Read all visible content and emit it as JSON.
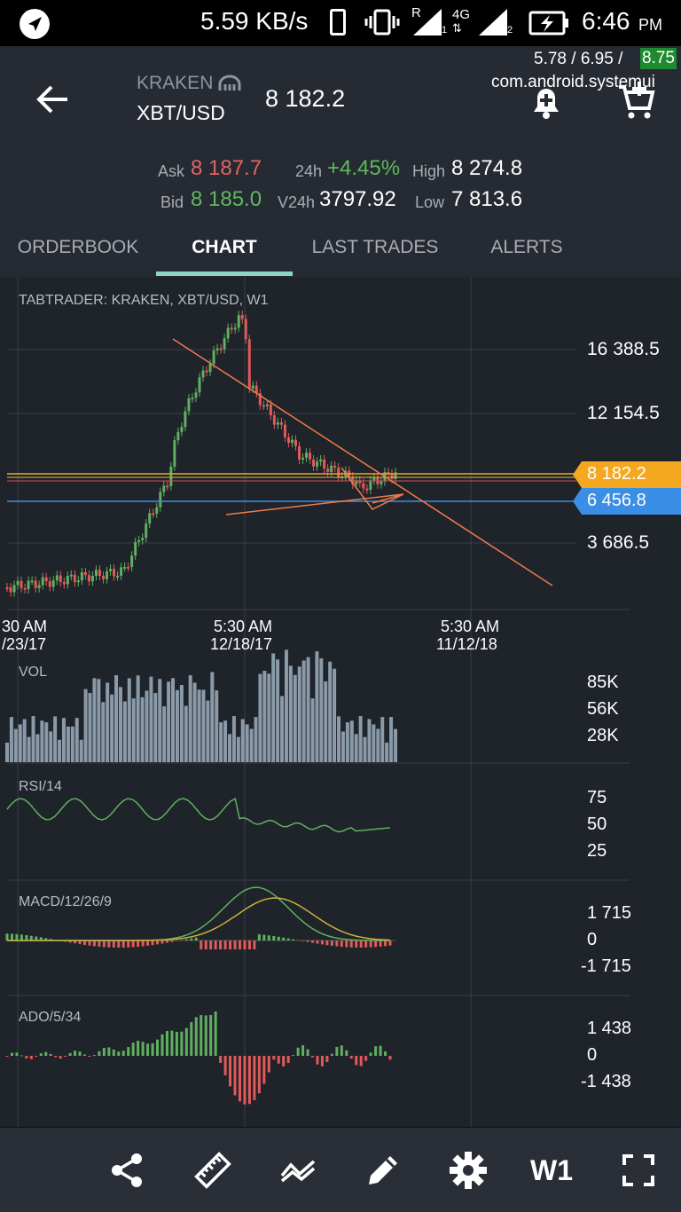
{
  "status_bar": {
    "speed": "5.59 KB/s",
    "network_r": "R",
    "network_4g": "4G",
    "sim1": "1",
    "sim2": "2",
    "time": "6:46",
    "ampm": "PM",
    "overlay_values": "5.78 / 6.95 / ",
    "overlay_highlight": "8.75",
    "overlay_process": "com.android.systemui"
  },
  "header": {
    "exchange": "KRAKEN",
    "pair": "XBT/USD",
    "price": "8 182.2"
  },
  "stats": {
    "ask_label": "Ask",
    "ask_value": "8 187.7",
    "bid_label": "Bid",
    "bid_value": "8 185.0",
    "change_label": "24h",
    "change_value": "+4.45%",
    "v24_label": "V24h",
    "v24_value": "3797.92",
    "high_label": "High",
    "high_value": "8 274.8",
    "low_label": "Low",
    "low_value": "7 813.6"
  },
  "tabs": [
    "ORDERBOOK",
    "CHART",
    "LAST TRADES",
    "ALERTS"
  ],
  "active_tab": "CHART",
  "chart": {
    "title": "TABTRADER: KRAKEN, XBT/USD, W1",
    "price_axis": [
      "16 388.5",
      "12 154.5",
      "3 686.5"
    ],
    "price_tag_current": "8 182.2",
    "price_tag_blue": "6 456.8",
    "time_labels": [
      {
        "time": "30 AM",
        "date": "/23/17"
      },
      {
        "time": "5:30 AM",
        "date": "12/18/17"
      },
      {
        "time": "5:30 AM",
        "date": "11/12/18"
      }
    ],
    "vol_label": "VOL",
    "vol_axis": [
      "85K",
      "56K",
      "28K"
    ],
    "rsi_label": "RSI/14",
    "rsi_axis": [
      "75",
      "50",
      "25"
    ],
    "macd_label": "MACD/12/26/9",
    "macd_axis": [
      "1 715",
      "0",
      "-1 715"
    ],
    "ado_label": "ADO/5/34",
    "ado_axis": [
      "1 438",
      "0",
      "-1 438"
    ]
  },
  "colors": {
    "up": "#5fb05f",
    "down": "#e05a5a",
    "accent": "#8fd3c5",
    "price_tag": "#f3a81f",
    "blue_tag": "#3b8ee6",
    "trendline": "#f07a4a",
    "volume": "#8a9aa8"
  },
  "bottom_toolbar": {
    "timeframe": "W1",
    "icons": [
      "share-icon",
      "ruler-icon",
      "indicators-icon",
      "pencil-icon",
      "settings-icon",
      "fullscreen-icon"
    ]
  }
}
